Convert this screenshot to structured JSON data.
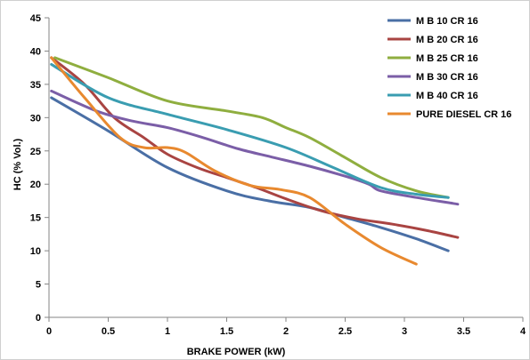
{
  "chart_data": {
    "type": "line",
    "title": "",
    "xlabel": "BRAKE POWER (kW)",
    "ylabel": "HC (% Vol.)",
    "xlim": [
      0,
      4
    ],
    "ylim": [
      0,
      45
    ],
    "x_ticks": [
      0,
      0.5,
      1,
      1.5,
      2,
      2.5,
      3,
      3.5,
      4
    ],
    "x_tick_labels": [
      "0",
      "0.5",
      "1",
      "1.5",
      "2",
      "2.5",
      "3",
      "3.5",
      "4"
    ],
    "y_ticks": [
      0,
      5,
      10,
      15,
      20,
      25,
      30,
      35,
      40,
      45
    ],
    "y_tick_labels": [
      "0",
      "5",
      "10",
      "15",
      "20",
      "25",
      "30",
      "35",
      "40",
      "45"
    ],
    "grid": false,
    "legend_position": "top-right",
    "series": [
      {
        "name": "M B 10 CR 16",
        "color": "#4a6fa5",
        "x": [
          0.02,
          0.5,
          1.0,
          1.5,
          1.85,
          2.2,
          2.5,
          2.8,
          3.1,
          3.37
        ],
        "y": [
          33,
          28,
          22.5,
          19,
          17.5,
          16.5,
          15,
          13.5,
          11.8,
          10
        ]
      },
      {
        "name": "M B 20 CR 16",
        "color": "#a94442",
        "x": [
          0.02,
          0.3,
          0.55,
          0.8,
          1.0,
          1.25,
          1.5,
          1.75,
          2.0,
          2.3,
          2.6,
          2.9,
          3.2,
          3.45
        ],
        "y": [
          39,
          35,
          30,
          27,
          24.5,
          22.5,
          21,
          19.5,
          17.8,
          16,
          14.8,
          14,
          13,
          12
        ]
      },
      {
        "name": "M B 25 CR 16",
        "color": "#8fae3f",
        "x": [
          0.05,
          0.5,
          1.0,
          1.5,
          1.8,
          2.0,
          2.2,
          2.5,
          2.8,
          3.1,
          3.37
        ],
        "y": [
          39,
          36,
          32.5,
          31,
          30,
          28.5,
          27,
          24,
          21,
          19,
          18
        ]
      },
      {
        "name": "M B 30 CR 16",
        "color": "#7b5ea7",
        "x": [
          0.02,
          0.4,
          0.7,
          1.0,
          1.3,
          1.6,
          1.9,
          2.2,
          2.5,
          2.7,
          2.8,
          3.1,
          3.45
        ],
        "y": [
          34,
          31,
          29.5,
          28.5,
          27,
          25.3,
          24,
          22.7,
          21.2,
          20,
          19,
          18,
          17
        ]
      },
      {
        "name": "M B 40 CR 16",
        "color": "#3a9db1",
        "x": [
          0.02,
          0.5,
          1.0,
          1.5,
          2.0,
          2.4,
          2.8,
          3.1,
          3.37
        ],
        "y": [
          38,
          33,
          30.5,
          28.2,
          25.5,
          22.5,
          19.5,
          18.5,
          18
        ]
      },
      {
        "name": "PURE DIESEL CR 16",
        "color": "#e8892f",
        "x": [
          0.02,
          0.3,
          0.6,
          0.8,
          1.0,
          1.15,
          1.4,
          1.7,
          1.95,
          2.2,
          2.5,
          2.8,
          3.1
        ],
        "y": [
          39,
          33,
          27,
          25.5,
          25.5,
          24.8,
          22,
          19.8,
          19.2,
          18,
          14,
          10.5,
          8
        ]
      }
    ]
  }
}
